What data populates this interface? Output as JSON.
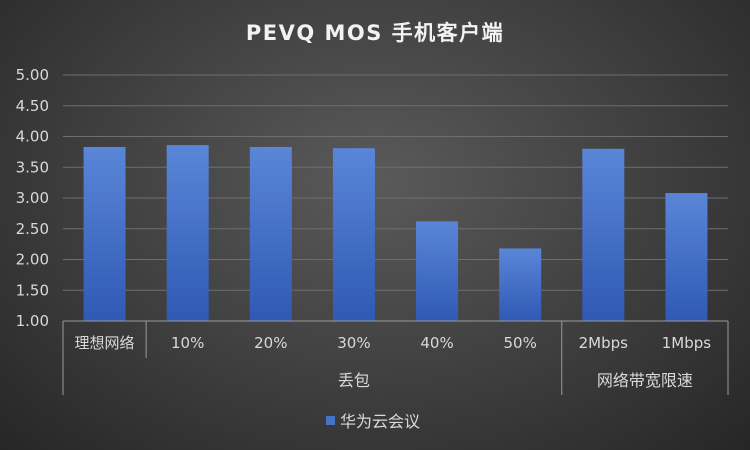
{
  "chart_data": {
    "type": "bar",
    "title": "PEVQ MOS 手机客户端",
    "categories": [
      "理想网络",
      "10%",
      "20%",
      "30%",
      "40%",
      "50%",
      "2Mbps",
      "1Mbps"
    ],
    "groups": [
      {
        "label": "丢包",
        "categories": [
          "10%",
          "20%",
          "30%",
          "40%",
          "50%"
        ]
      },
      {
        "label": "网络带宽限速",
        "categories": [
          "2Mbps",
          "1Mbps"
        ]
      }
    ],
    "series": [
      {
        "name": "华为云会议",
        "color": "#4472c4",
        "values": [
          3.83,
          3.86,
          3.83,
          3.81,
          2.62,
          2.18,
          3.8,
          3.08
        ]
      }
    ],
    "ylim": [
      1.0,
      5.0
    ],
    "yticks": [
      "1.00",
      "1.50",
      "2.00",
      "2.50",
      "3.00",
      "3.50",
      "4.00",
      "4.50",
      "5.00"
    ],
    "grid": true,
    "legend": "bottom"
  }
}
